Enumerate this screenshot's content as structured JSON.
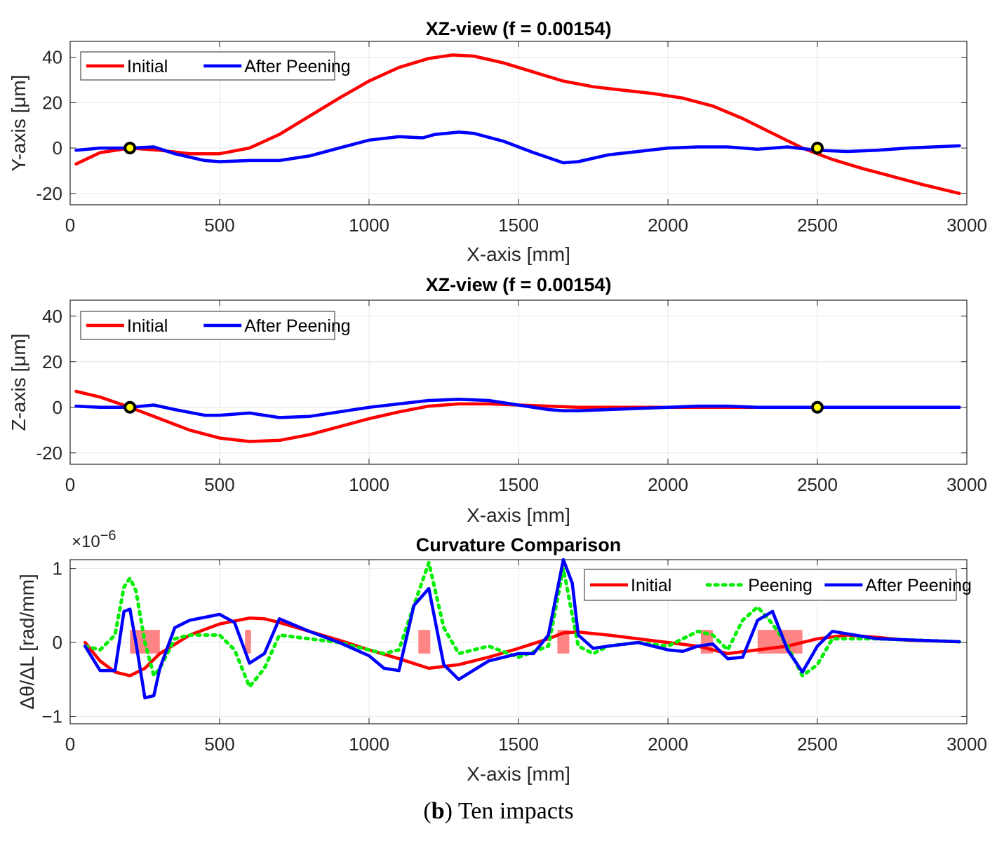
{
  "caption": {
    "panel_letter": "b",
    "text": "Ten impacts"
  },
  "chart_data": [
    {
      "type": "line",
      "title": "XZ-view (f = 0.00154)",
      "xlabel": "X-axis [mm]",
      "ylabel": "Y-axis [μm]",
      "xlim": [
        0,
        3000
      ],
      "ylim": [
        -25,
        47
      ],
      "xticks": [
        0,
        500,
        1000,
        1500,
        2000,
        2500,
        3000
      ],
      "yticks": [
        -20,
        0,
        20,
        40
      ],
      "grid": true,
      "legend_position": "top-left",
      "series": [
        {
          "name": "Initial",
          "color": "#ff0000",
          "dash": "solid",
          "x": [
            20,
            100,
            200,
            300,
            400,
            500,
            600,
            700,
            800,
            900,
            1000,
            1100,
            1200,
            1280,
            1350,
            1450,
            1550,
            1650,
            1750,
            1850,
            1950,
            2050,
            2150,
            2250,
            2350,
            2450,
            2550,
            2650,
            2750,
            2850,
            2975
          ],
          "y": [
            -7,
            -2,
            0,
            -1,
            -2.5,
            -2.5,
            0,
            6,
            14,
            22,
            29.5,
            35.5,
            39.5,
            41,
            40.5,
            37.5,
            33.5,
            29.5,
            27,
            25.5,
            24,
            22,
            18.5,
            13,
            6.5,
            0,
            -5,
            -9,
            -12.5,
            -16,
            -20
          ]
        },
        {
          "name": "After Peening",
          "color": "#0000ff",
          "dash": "solid",
          "x": [
            20,
            100,
            200,
            280,
            350,
            450,
            500,
            600,
            700,
            800,
            900,
            1000,
            1100,
            1180,
            1220,
            1300,
            1350,
            1450,
            1550,
            1650,
            1700,
            1800,
            1900,
            2000,
            2100,
            2200,
            2300,
            2400,
            2500,
            2600,
            2700,
            2800,
            2975
          ],
          "y": [
            -1,
            0,
            0,
            0.5,
            -2.5,
            -5.5,
            -6,
            -5.5,
            -5.5,
            -3.5,
            0,
            3.5,
            5,
            4.5,
            6,
            7,
            6.5,
            3,
            -2,
            -6.5,
            -6,
            -3,
            -1.5,
            0,
            0.5,
            0.5,
            -0.5,
            0.5,
            -1,
            -1.5,
            -1,
            0,
            1
          ]
        }
      ],
      "markers": [
        {
          "x": 200,
          "y": 0
        },
        {
          "x": 2500,
          "y": 0
        }
      ]
    },
    {
      "type": "line",
      "title": "XZ-view (f = 0.00154)",
      "xlabel": "X-axis [mm]",
      "ylabel": "Z-axis [μm]",
      "xlim": [
        0,
        3000
      ],
      "ylim": [
        -25,
        47
      ],
      "xticks": [
        0,
        500,
        1000,
        1500,
        2000,
        2500,
        3000
      ],
      "yticks": [
        -20,
        0,
        20,
        40
      ],
      "grid": true,
      "legend_position": "top-left",
      "series": [
        {
          "name": "Initial",
          "color": "#ff0000",
          "dash": "solid",
          "x": [
            20,
            100,
            200,
            300,
            400,
            500,
            600,
            700,
            800,
            900,
            1000,
            1100,
            1200,
            1300,
            1400,
            1500,
            1600,
            1700,
            1800,
            1900,
            2000,
            2200,
            2500,
            2975
          ],
          "y": [
            7,
            4.5,
            0,
            -5,
            -10,
            -13.5,
            -15,
            -14.5,
            -12,
            -8.5,
            -5,
            -2,
            0.5,
            1.5,
            1.5,
            1,
            0.5,
            0,
            0,
            0,
            0,
            0,
            0,
            0
          ]
        },
        {
          "name": "After Peening",
          "color": "#0000ff",
          "dash": "solid",
          "x": [
            20,
            100,
            200,
            280,
            350,
            450,
            500,
            600,
            700,
            800,
            900,
            1000,
            1100,
            1200,
            1300,
            1400,
            1500,
            1600,
            1650,
            1700,
            1800,
            1900,
            2000,
            2100,
            2200,
            2300,
            2400,
            2500,
            2975
          ],
          "y": [
            0.5,
            0,
            0,
            1,
            -1,
            -3.5,
            -3.5,
            -2.5,
            -4.5,
            -4,
            -2,
            0,
            1.5,
            3,
            3.5,
            3,
            1,
            -1,
            -1.5,
            -1.5,
            -1,
            -0.5,
            0,
            0.5,
            0.5,
            0,
            0,
            0,
            0
          ]
        }
      ],
      "markers": [
        {
          "x": 200,
          "y": 0
        },
        {
          "x": 2500,
          "y": 0
        }
      ]
    },
    {
      "type": "line",
      "title": "Curvature Comparison",
      "xlabel": "X-axis [mm]",
      "ylabel": "Δθ/ΔL [rad/mm]",
      "exponent_label": "×10",
      "exponent_power": "−6",
      "xlim": [
        0,
        3000
      ],
      "ylim": [
        -1.1,
        1.12
      ],
      "xticks": [
        0,
        500,
        1000,
        1500,
        2000,
        2500,
        3000
      ],
      "yticks": [
        -1,
        0,
        1
      ],
      "ytick_labels": [
        "−1",
        "0",
        "1"
      ],
      "grid": true,
      "legend_position": "top-right",
      "series": [
        {
          "name": "Initial",
          "color": "#ff0000",
          "dash": "solid",
          "x": [
            50,
            100,
            150,
            200,
            250,
            300,
            400,
            500,
            600,
            650,
            700,
            800,
            900,
            1000,
            1100,
            1200,
            1300,
            1400,
            1500,
            1600,
            1650,
            1700,
            1800,
            1900,
            2000,
            2100,
            2200,
            2300,
            2400,
            2500,
            2600,
            2700,
            2800,
            2975
          ],
          "y": [
            0,
            -0.25,
            -0.4,
            -0.45,
            -0.35,
            -0.15,
            0.1,
            0.25,
            0.33,
            0.32,
            0.27,
            0.15,
            0.03,
            -0.1,
            -0.22,
            -0.35,
            -0.3,
            -0.2,
            -0.08,
            0.05,
            0.13,
            0.14,
            0.1,
            0.05,
            0,
            -0.05,
            -0.15,
            -0.1,
            -0.05,
            0.05,
            0.1,
            0.07,
            0.03,
            0.01
          ]
        },
        {
          "name": "Peening",
          "color": "#00ee00",
          "dash": "dotted",
          "x": [
            50,
            100,
            150,
            180,
            200,
            220,
            250,
            280,
            300,
            350,
            400,
            500,
            550,
            600,
            650,
            700,
            800,
            900,
            1000,
            1050,
            1100,
            1150,
            1200,
            1250,
            1300,
            1400,
            1500,
            1600,
            1650,
            1700,
            1750,
            1800,
            1900,
            2000,
            2100,
            2150,
            2200,
            2250,
            2300,
            2350,
            2400,
            2450,
            2500,
            2550,
            2700,
            2975
          ],
          "y": [
            -0.05,
            -0.1,
            0.1,
            0.75,
            0.87,
            0.7,
            0,
            -0.45,
            -0.35,
            0.05,
            0.1,
            0.1,
            -0.1,
            -0.6,
            -0.35,
            0.1,
            0.05,
            0,
            -0.1,
            -0.15,
            -0.1,
            0.5,
            1.08,
            0.2,
            -0.15,
            -0.05,
            -0.2,
            -0.05,
            1,
            -0.05,
            -0.15,
            -0.05,
            0,
            -0.05,
            0.15,
            0.1,
            -0.1,
            0.3,
            0.48,
            0.25,
            -0.05,
            -0.45,
            -0.3,
            0.05,
            0.05,
            0.01
          ]
        },
        {
          "name": "After Peening",
          "color": "#0000ff",
          "dash": "solid",
          "x": [
            50,
            100,
            150,
            180,
            200,
            220,
            250,
            280,
            300,
            350,
            400,
            500,
            550,
            600,
            650,
            700,
            800,
            900,
            1000,
            1050,
            1100,
            1150,
            1200,
            1250,
            1300,
            1400,
            1500,
            1550,
            1600,
            1650,
            1680,
            1700,
            1750,
            1800,
            1900,
            2000,
            2050,
            2100,
            2150,
            2200,
            2250,
            2300,
            2350,
            2400,
            2450,
            2500,
            2550,
            2700,
            2975
          ],
          "y": [
            -0.05,
            -0.38,
            -0.38,
            0.42,
            0.45,
            0,
            -0.75,
            -0.72,
            -0.35,
            0.2,
            0.3,
            0.38,
            0.27,
            -0.28,
            -0.15,
            0.32,
            0.15,
            0,
            -0.18,
            -0.35,
            -0.38,
            0.5,
            0.73,
            -0.3,
            -0.5,
            -0.25,
            -0.15,
            -0.15,
            0.1,
            1.12,
            0.8,
            0.1,
            -0.08,
            -0.05,
            0,
            -0.1,
            -0.12,
            -0.05,
            -0.02,
            -0.22,
            -0.2,
            0.3,
            0.42,
            -0.1,
            -0.4,
            -0.05,
            0.15,
            0.05,
            0.01
          ]
        }
      ],
      "shaded_regions": [
        {
          "x0": 200,
          "x1": 300,
          "y0": -0.15,
          "y1": 0.17
        },
        {
          "x0": 585,
          "x1": 605,
          "y0": -0.15,
          "y1": 0.17
        },
        {
          "x0": 1165,
          "x1": 1205,
          "y0": -0.15,
          "y1": 0.17
        },
        {
          "x0": 1630,
          "x1": 1670,
          "y0": -0.15,
          "y1": 0.17
        },
        {
          "x0": 2110,
          "x1": 2150,
          "y0": -0.15,
          "y1": 0.17
        },
        {
          "x0": 2300,
          "x1": 2450,
          "y0": -0.15,
          "y1": 0.17
        }
      ]
    }
  ]
}
